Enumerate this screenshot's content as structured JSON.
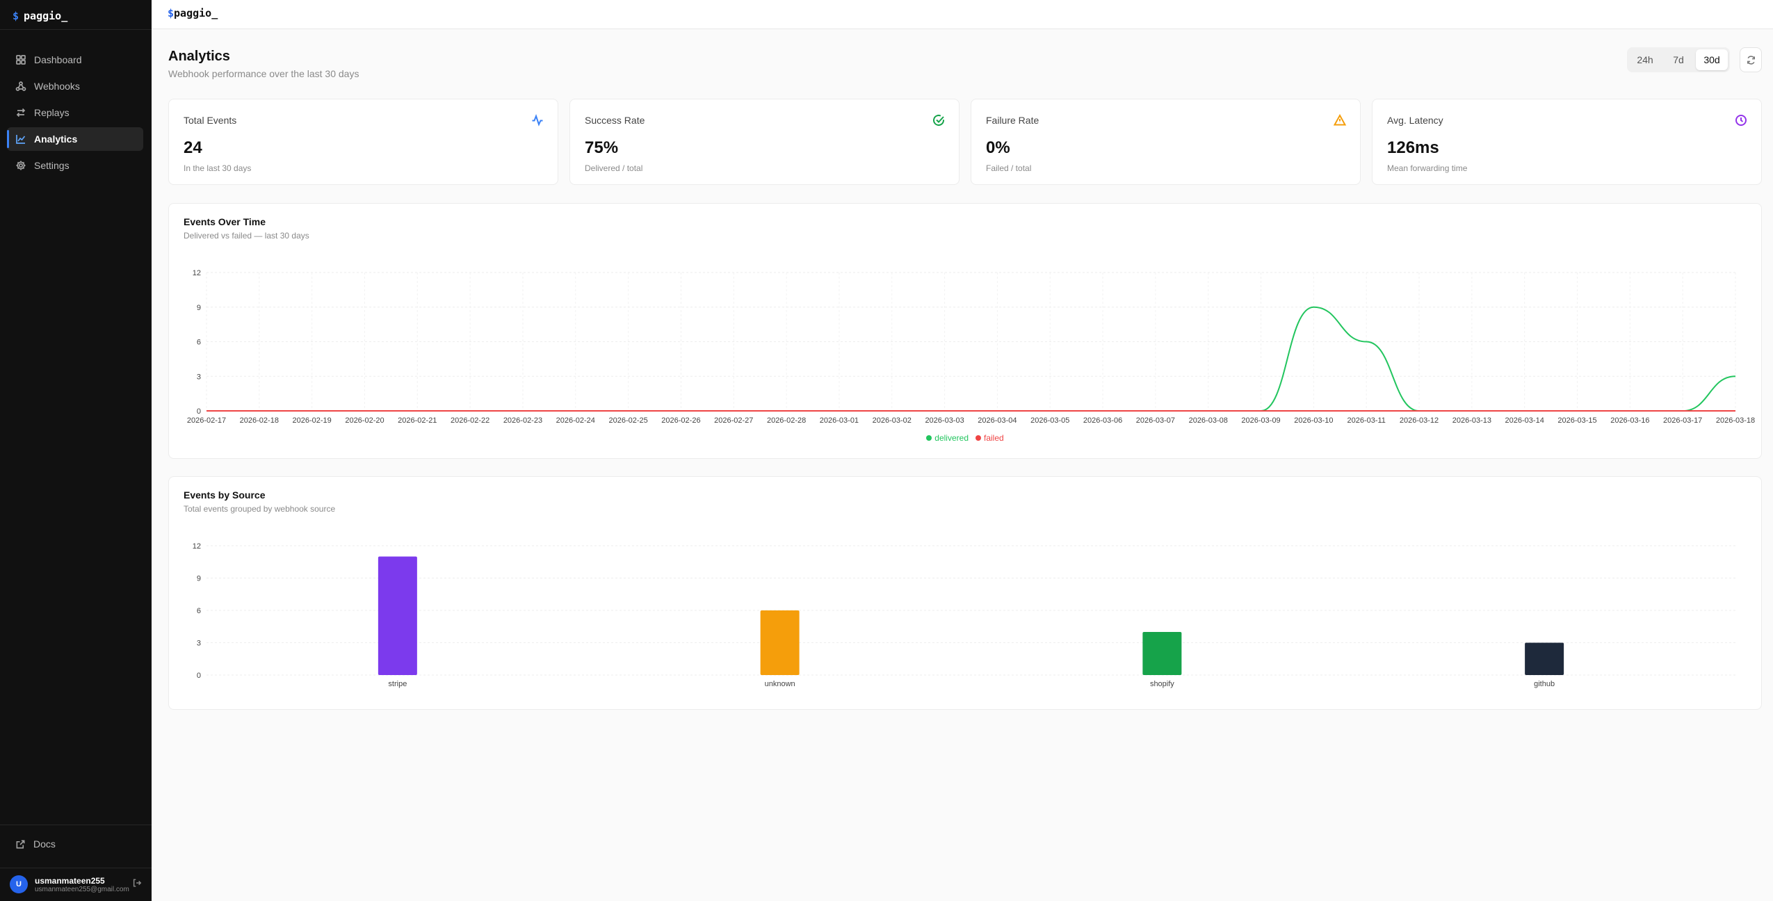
{
  "brand": {
    "dollar": "$",
    "name": "paggio_"
  },
  "topbar": {
    "dollar": "$",
    "name": "paggio_"
  },
  "nav": [
    {
      "label": "Dashboard",
      "icon": "dashboard-icon",
      "active": false
    },
    {
      "label": "Webhooks",
      "icon": "webhook-icon",
      "active": false
    },
    {
      "label": "Replays",
      "icon": "replay-icon",
      "active": false
    },
    {
      "label": "Analytics",
      "icon": "analytics-icon",
      "active": true
    },
    {
      "label": "Settings",
      "icon": "gear-icon",
      "active": false
    }
  ],
  "docs": {
    "label": "Docs"
  },
  "user": {
    "initial": "U",
    "name": "usmanmateen255",
    "email": "usmanmateen255@gmail.com"
  },
  "page": {
    "title": "Analytics",
    "subtitle": "Webhook performance over the last 30 days"
  },
  "range": {
    "options": [
      "24h",
      "7d",
      "30d"
    ],
    "selected": "30d"
  },
  "stats": [
    {
      "label": "Total Events",
      "value": "24",
      "desc": "In the last 30 days",
      "icon": "activity-icon",
      "color": "#3b82f6"
    },
    {
      "label": "Success Rate",
      "value": "75%",
      "desc": "Delivered / total",
      "icon": "check-circle-icon",
      "color": "#16a34a"
    },
    {
      "label": "Failure Rate",
      "value": "0%",
      "desc": "Failed / total",
      "icon": "warning-icon",
      "color": "#f59e0b"
    },
    {
      "label": "Avg. Latency",
      "value": "126ms",
      "desc": "Mean forwarding time",
      "icon": "clock-icon",
      "color": "#9333ea"
    }
  ],
  "events_over_time": {
    "title": "Events Over Time",
    "subtitle": "Delivered vs failed — last 30 days"
  },
  "events_by_source": {
    "title": "Events by Source",
    "subtitle": "Total events grouped by webhook source"
  },
  "chart_data": [
    {
      "type": "line",
      "title": "Events Over Time",
      "subtitle": "Delivered vs failed — last 30 days",
      "x": [
        "2026-02-17",
        "2026-02-18",
        "2026-02-19",
        "2026-02-20",
        "2026-02-21",
        "2026-02-22",
        "2026-02-23",
        "2026-02-24",
        "2026-02-25",
        "2026-02-26",
        "2026-02-27",
        "2026-02-28",
        "2026-03-01",
        "2026-03-02",
        "2026-03-03",
        "2026-03-04",
        "2026-03-05",
        "2026-03-06",
        "2026-03-07",
        "2026-03-08",
        "2026-03-09",
        "2026-03-10",
        "2026-03-11",
        "2026-03-12",
        "2026-03-13",
        "2026-03-14",
        "2026-03-15",
        "2026-03-16",
        "2026-03-17",
        "2026-03-18"
      ],
      "series": [
        {
          "name": "delivered",
          "color": "#22c55e",
          "values": [
            0,
            0,
            0,
            0,
            0,
            0,
            0,
            0,
            0,
            0,
            0,
            0,
            0,
            0,
            0,
            0,
            0,
            0,
            0,
            0,
            0,
            9,
            6,
            0,
            0,
            0,
            0,
            0,
            0,
            3
          ]
        },
        {
          "name": "failed",
          "color": "#ef4444",
          "values": [
            0,
            0,
            0,
            0,
            0,
            0,
            0,
            0,
            0,
            0,
            0,
            0,
            0,
            0,
            0,
            0,
            0,
            0,
            0,
            0,
            0,
            0,
            0,
            0,
            0,
            0,
            0,
            0,
            0,
            0
          ]
        }
      ],
      "yticks": [
        0,
        3,
        6,
        9,
        12
      ],
      "ylim": [
        0,
        12
      ],
      "grid": true,
      "legend": "bottom-center"
    },
    {
      "type": "bar",
      "title": "Events by Source",
      "subtitle": "Total events grouped by webhook source",
      "categories": [
        "stripe",
        "unknown",
        "shopify",
        "github"
      ],
      "values": [
        11,
        6,
        4,
        3
      ],
      "colors": [
        "#7c3aed",
        "#f59e0b",
        "#16a34a",
        "#1e293b"
      ],
      "yticks": [
        0,
        3,
        6,
        9,
        12
      ],
      "ylim": [
        0,
        12
      ],
      "grid": true
    }
  ]
}
